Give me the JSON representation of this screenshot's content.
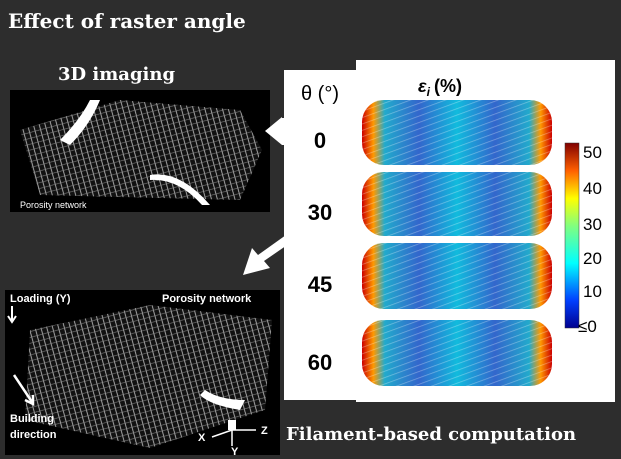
{
  "header": {
    "title": "Effect of raster angle"
  },
  "imaging": {
    "title": "3D imaging",
    "top_label": "Porosity network",
    "loading": "Loading (Y)",
    "porosity": "Porosity network",
    "building": [
      "Building",
      "direction"
    ],
    "axes": {
      "x": "X",
      "y": "Y",
      "z": "Z"
    }
  },
  "computation": {
    "angle_header": "θ (°)",
    "angles": [
      "0",
      "30",
      "45",
      "60"
    ],
    "strain_symbol": "ε",
    "strain_subscript": "i",
    "strain_unit": "(%)",
    "colorbar_ticks": [
      "50",
      "40",
      "30",
      "20",
      "10",
      "≤0"
    ],
    "title": "Filament-based computation"
  }
}
